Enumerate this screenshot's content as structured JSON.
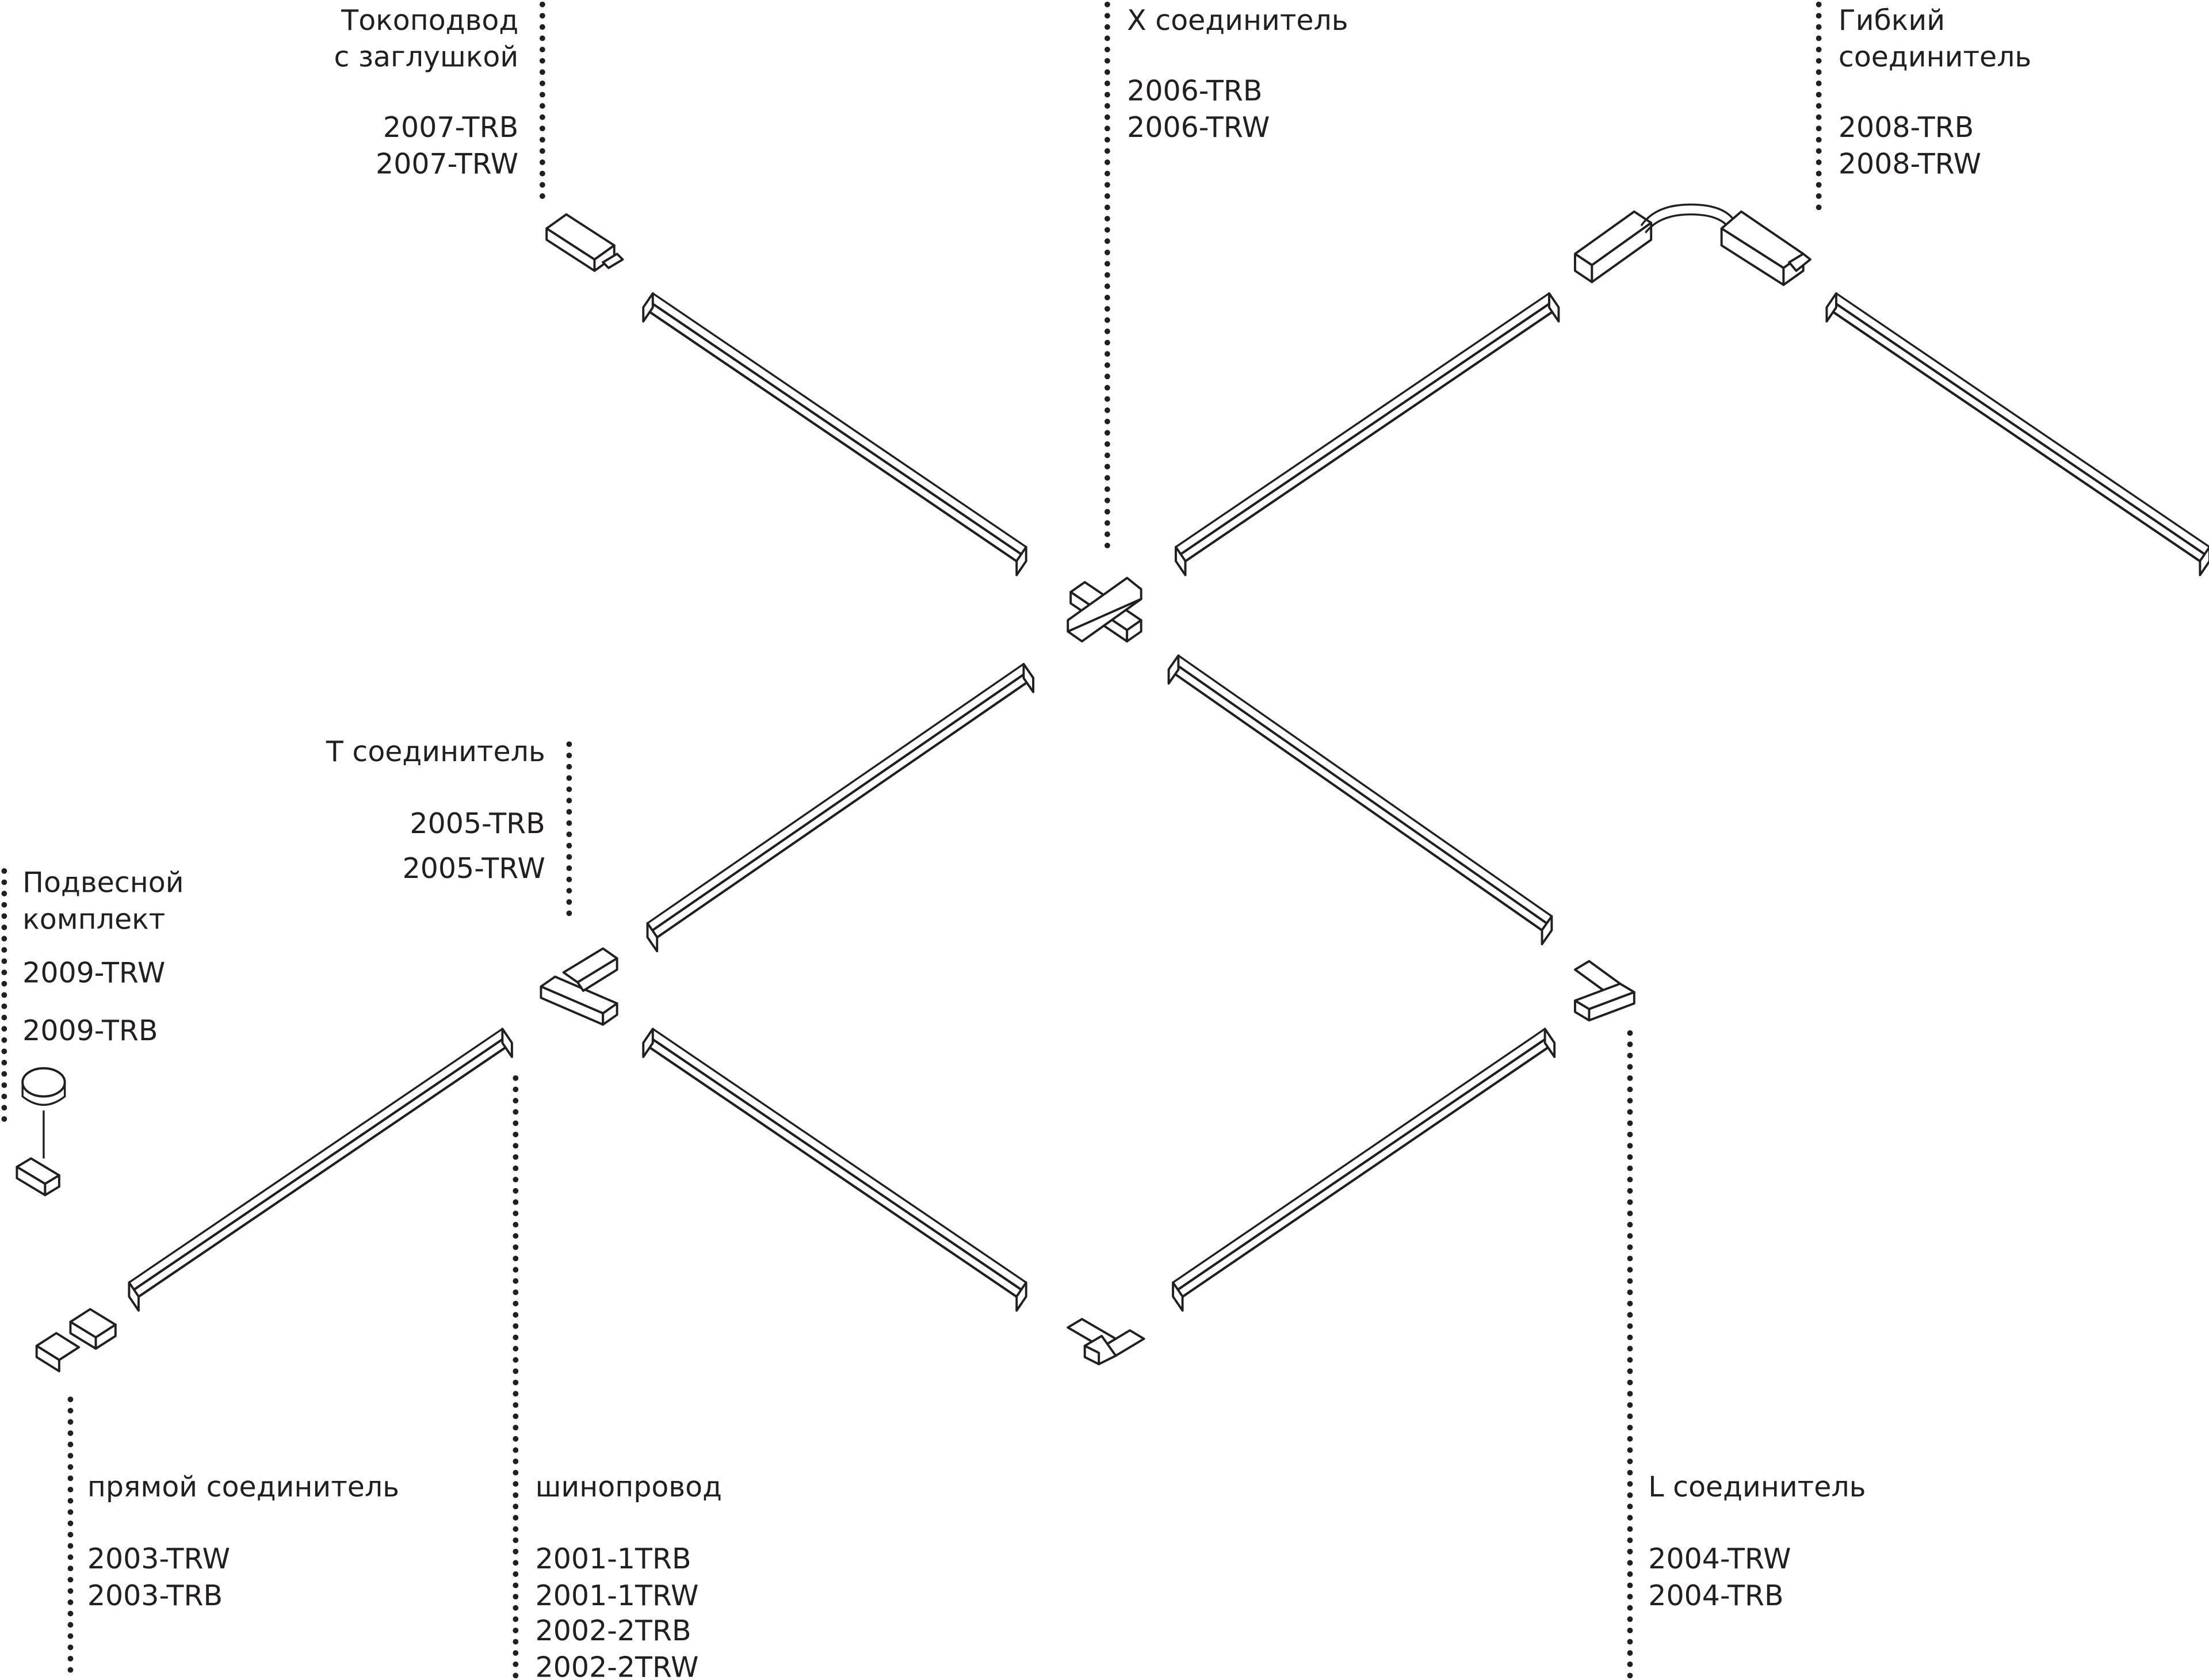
{
  "labels": [
    {
      "name_lines": [
        "Токоподвод",
        "с заглушкой"
      ],
      "codes": [
        "2007-TRB",
        "2007-TRW"
      ]
    },
    {
      "name_lines": [
        "X соединитель"
      ],
      "codes": [
        "2006-TRB",
        "2006-TRW"
      ]
    },
    {
      "name_lines": [
        "Гибкий",
        "соединитель"
      ],
      "codes": [
        "2008-TRB",
        "2008-TRW"
      ]
    },
    {
      "name_lines": [
        "T соединитель"
      ],
      "codes": [
        "2005-TRB",
        "2005-TRW"
      ]
    },
    {
      "name_lines": [
        "Подвесной",
        "комплект"
      ],
      "codes": [
        "2009-TRW",
        "2009-TRB"
      ]
    },
    {
      "name_lines": [
        "прямой соединитель"
      ],
      "codes": [
        "2003-TRW",
        "2003-TRB"
      ]
    },
    {
      "name_lines": [
        "шинопровод"
      ],
      "codes": [
        "2001-1TRB",
        "2001-1TRW",
        "2002-2TRB",
        "2002-2TRW"
      ]
    },
    {
      "name_lines": [
        "L соединитель"
      ],
      "codes": [
        "2004-TRW",
        "2004-TRB"
      ]
    }
  ]
}
